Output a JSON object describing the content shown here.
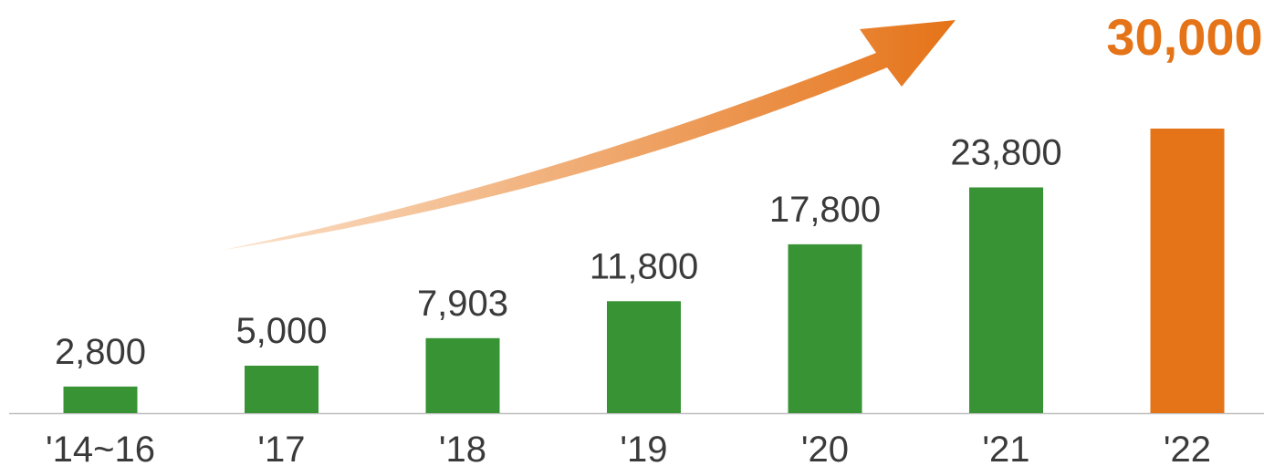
{
  "chart_data": {
    "type": "bar",
    "title": "",
    "xlabel": "",
    "ylabel": "",
    "categories": [
      "'14~16",
      "'17",
      "'18",
      "'19",
      "'20",
      "'21",
      "'22"
    ],
    "values": [
      2800,
      5000,
      7903,
      11800,
      17800,
      23800,
      30000
    ],
    "value_labels": [
      "2,800",
      "5,000",
      "7,903",
      "11,800",
      "17,800",
      "23,800",
      "30,000"
    ],
    "highlight_index": 6,
    "ylim": [
      0,
      30000
    ],
    "grid": false,
    "colors": {
      "bar": "#389335",
      "highlight": "#e57318",
      "arrow_start": "#fbe2cb",
      "arrow_end": "#e57318",
      "text": "#3a3a3a",
      "baseline": "#bfbfbf"
    },
    "annotation": "upward growth arrow"
  }
}
